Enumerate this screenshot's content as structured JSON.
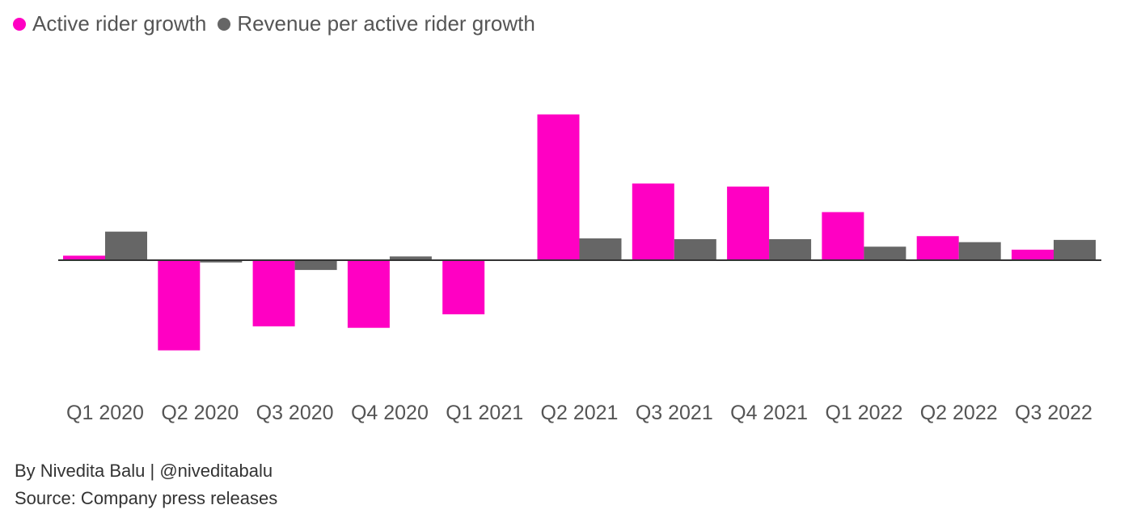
{
  "chart_data": {
    "type": "bar",
    "title": "",
    "xlabel": "",
    "ylabel": "",
    "unit": "% YoY (estimated; no y-axis shown)",
    "categories": [
      "Q1 2020",
      "Q2 2020",
      "Q3 2020",
      "Q4 2020",
      "Q1 2021",
      "Q2 2021",
      "Q3 2021",
      "Q4 2021",
      "Q1 2022",
      "Q2 2022",
      "Q3 2022"
    ],
    "series": [
      {
        "name": "Active rider growth",
        "color": "#ff00c3",
        "values": [
          3,
          -60,
          -44,
          -45,
          -36,
          97,
          51,
          49,
          32,
          16,
          7
        ]
      },
      {
        "name": "Revenue per active rider growth",
        "color": "#666666",
        "values": [
          19,
          -1.5,
          -6.5,
          2.5,
          0,
          14.5,
          14,
          14,
          9,
          12,
          13.5
        ]
      }
    ],
    "ylim": [
      -70,
      110
    ],
    "grid": false,
    "legend_position": "top-left"
  },
  "footer": {
    "byline": "By Nivedita Balu | @niveditabalu",
    "source": "Source: Company press releases"
  }
}
